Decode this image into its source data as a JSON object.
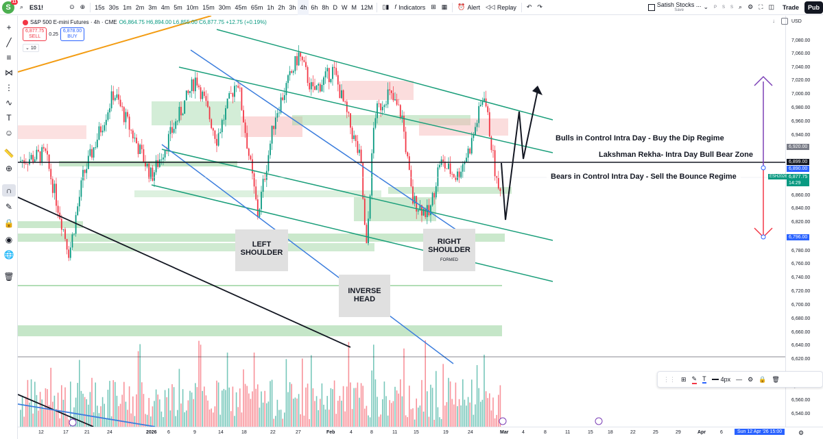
{
  "topbar": {
    "avatar_letter": "S",
    "avatar_badge": "11",
    "symbol": "ES1!",
    "plus_icon": "+",
    "intervals": [
      "15s",
      "30s",
      "1m",
      "2m",
      "3m",
      "4m",
      "5m",
      "10m",
      "15m",
      "30m",
      "45m",
      "65m",
      "1h",
      "2h",
      "3h",
      "4h",
      "6h",
      "8h",
      "D",
      "W",
      "M",
      "12M"
    ],
    "active_interval": "4h",
    "indicators_label": "Indicators",
    "alert_label": "Alert",
    "replay_label": "Replay",
    "layout_name": "Satish Stocks ...",
    "layout_sub": "Save",
    "letters": [
      "P",
      "S",
      "S"
    ],
    "trade_label": "Trade",
    "publish_label": "Pub"
  },
  "legend": {
    "title": "S&P 500 E-mini Futures · 4h · CME",
    "ohlc": "O6,864.75 H6,894.00 L6,855.00 C6,877.75 +12.75 (+0.19%)",
    "sell_price": "6,877.75",
    "sell_label": "SELL",
    "spread": "0.25",
    "buy_price": "6,878.00",
    "buy_label": "BUY",
    "vol_setting": "10"
  },
  "annotations": {
    "bulls": "Bulls in Control Intra Day - Buy the Dip Regime",
    "lakshman": "Lakshman Rekha- Intra Day Bull Bear Zone",
    "bears": "Bears in Control Intra Day - Sell the Bounce Regime",
    "left_shoulder": "LEFT\nSHOULDER",
    "inverse_head": "INVERSE\nHEAD",
    "right_shoulder": "RIGHT\nSHOULDER",
    "formed": "FORMED"
  },
  "pricescale": {
    "currency": "USD",
    "labels": [
      "7,080.00",
      "7,060.00",
      "7,040.00",
      "7,020.00",
      "7,000.00",
      "6,980.00",
      "6,960.00",
      "6,940.00",
      "6,920.00",
      "6,899.00",
      "6,890.00",
      "6,860.00",
      "6,840.00",
      "6,820.00",
      "6,796.00",
      "6,780.00",
      "6,760.00",
      "6,740.00",
      "6,720.00",
      "6,700.00",
      "6,680.00",
      "6,660.00",
      "6,640.00",
      "6,620.00",
      "6,600.00",
      "6,580.00",
      "6,560.00",
      "6,540.00"
    ],
    "tag_6920": "6,920.00",
    "tag_6899": "6,899.00",
    "tag_6890": "6,890.00",
    "tag_contract": "ESH2026",
    "tag_last": "6,877.75",
    "tag_countdown": "14:29",
    "tag_6796": "6,796.00"
  },
  "timeaxis": {
    "labels": [
      "12",
      "17",
      "21",
      "24",
      "2026",
      "6",
      "9",
      "14",
      "18",
      "22",
      "27",
      "Feb",
      "4",
      "8",
      "11",
      "15",
      "19",
      "24",
      "Mar",
      "4",
      "8",
      "11",
      "15",
      "18",
      "22",
      "25",
      "29",
      "Apr",
      "6"
    ],
    "current": "Sun 12 Apr '26  15:00"
  },
  "drawbar": {
    "width_label": "4px"
  },
  "colors": {
    "up": "#089981",
    "down": "#f23645",
    "channel": "#1a9e7a",
    "trend_blue": "#3b7ddd",
    "orange": "#f39c12",
    "accent": "#2962ff"
  }
}
